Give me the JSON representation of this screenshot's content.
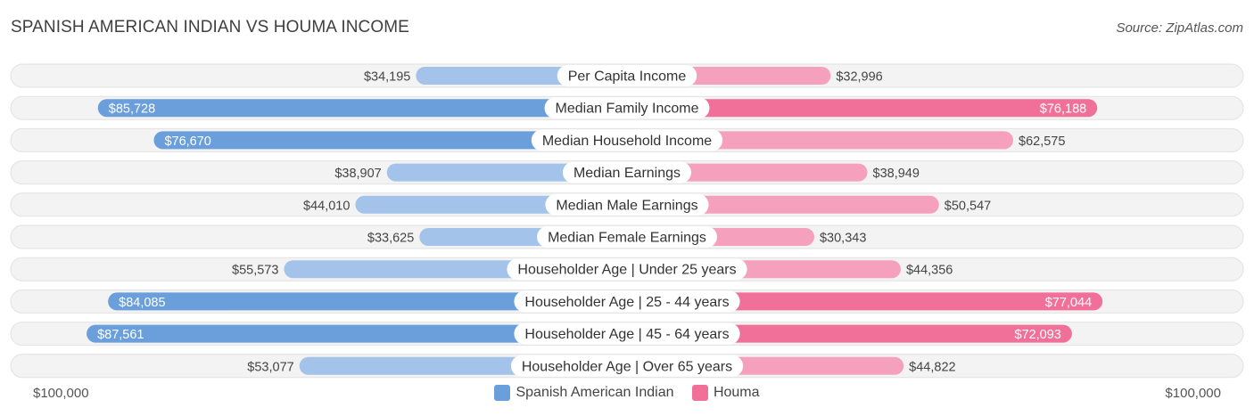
{
  "header": {
    "title": "SPANISH AMERICAN INDIAN VS HOUMA INCOME",
    "source": "Source: ZipAtlas.com"
  },
  "colors": {
    "left_strong": "#6a9fdc",
    "left_light": "#a3c3ea",
    "right_strong": "#f0709a",
    "right_light": "#f5a1bd",
    "track": "#eeeeee"
  },
  "chart_data": {
    "type": "bar",
    "orientation": "horizontal-diverging",
    "title": "SPANISH AMERICAN INDIAN VS HOUMA INCOME",
    "xlim": [
      0,
      100000
    ],
    "axis_labels": {
      "left": "$100,000",
      "right": "$100,000"
    },
    "legend": [
      "Spanish American Indian",
      "Houma"
    ],
    "categories": [
      "Per Capita Income",
      "Median Family Income",
      "Median Household Income",
      "Median Earnings",
      "Median Male Earnings",
      "Median Female Earnings",
      "Householder Age | Under 25 years",
      "Householder Age | 25 - 44 years",
      "Householder Age | 45 - 64 years",
      "Householder Age | Over 65 years"
    ],
    "series": [
      {
        "name": "Spanish American Indian",
        "values": [
          34195,
          85728,
          76670,
          38907,
          44010,
          33625,
          55573,
          84085,
          87561,
          53077
        ],
        "labels": [
          "$34,195",
          "$85,728",
          "$76,670",
          "$38,907",
          "$44,010",
          "$33,625",
          "$55,573",
          "$84,085",
          "$87,561",
          "$53,077"
        ]
      },
      {
        "name": "Houma",
        "values": [
          32996,
          76188,
          62575,
          38949,
          50547,
          30343,
          44356,
          77044,
          72093,
          44822
        ],
        "labels": [
          "$32,996",
          "$76,188",
          "$62,575",
          "$38,949",
          "$50,547",
          "$30,343",
          "$44,356",
          "$77,044",
          "$72,093",
          "$44,822"
        ]
      }
    ]
  }
}
